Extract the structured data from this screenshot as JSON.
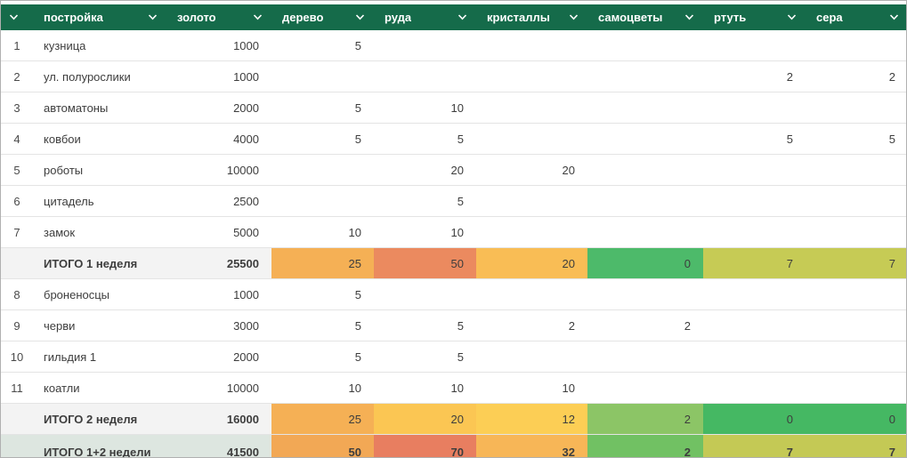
{
  "theme": {
    "header_bg": "#156b4a",
    "header_text": "#ffffff",
    "row_line": "#e4e4e4",
    "subtotal_bg": "#f3f3f3",
    "grand_bg": "#dde6e0",
    "text": "#3d3d3d"
  },
  "icons": {
    "header_chevron": "chevron-down-icon"
  },
  "table": {
    "columns": [
      {
        "key": "num",
        "label": ""
      },
      {
        "key": "building",
        "label": "постройка"
      },
      {
        "key": "gold",
        "label": "золото"
      },
      {
        "key": "wood",
        "label": "дерево"
      },
      {
        "key": "ore",
        "label": "руда"
      },
      {
        "key": "crystals",
        "label": "кристаллы"
      },
      {
        "key": "gems",
        "label": "самоцветы"
      },
      {
        "key": "mercury",
        "label": "ртуть"
      },
      {
        "key": "sulfur",
        "label": "сера"
      }
    ],
    "rows": [
      {
        "type": "data",
        "num": "1",
        "building": "кузница",
        "values": [
          "1000",
          "5",
          "",
          "",
          "",
          "",
          ""
        ]
      },
      {
        "type": "data",
        "num": "2",
        "building": "ул. полурослики",
        "values": [
          "1000",
          "",
          "",
          "",
          "",
          "2",
          "2"
        ]
      },
      {
        "type": "data",
        "num": "3",
        "building": "автоматоны",
        "values": [
          "2000",
          "5",
          "10",
          "",
          "",
          "",
          ""
        ]
      },
      {
        "type": "data",
        "num": "4",
        "building": "ковбои",
        "values": [
          "4000",
          "5",
          "5",
          "",
          "",
          "5",
          "5"
        ]
      },
      {
        "type": "data",
        "num": "5",
        "building": "роботы",
        "values": [
          "10000",
          "",
          "20",
          "20",
          "",
          "",
          ""
        ]
      },
      {
        "type": "data",
        "num": "6",
        "building": "цитадель",
        "values": [
          "2500",
          "",
          "5",
          "",
          "",
          "",
          ""
        ]
      },
      {
        "type": "data",
        "num": "7",
        "building": "замок",
        "values": [
          "5000",
          "10",
          "10",
          "",
          "",
          "",
          ""
        ]
      },
      {
        "type": "week-total",
        "num": "",
        "building": "ИТОГО 1 неделя",
        "values": [
          "25500",
          "25",
          "50",
          "20",
          "0",
          "7",
          "7"
        ],
        "colors": [
          "",
          "#f5b055",
          "#eb8a5f",
          "#f9bd55",
          "#4dba6a",
          "#c6cb55",
          "#c6cb55"
        ]
      },
      {
        "type": "data",
        "num": "8",
        "building": "броненосцы",
        "values": [
          "1000",
          "5",
          "",
          "",
          "",
          "",
          ""
        ]
      },
      {
        "type": "data",
        "num": "9",
        "building": "черви",
        "values": [
          "3000",
          "5",
          "5",
          "2",
          "2",
          "",
          ""
        ]
      },
      {
        "type": "data",
        "num": "10",
        "building": "гильдия 1",
        "values": [
          "2000",
          "5",
          "5",
          "",
          "",
          "",
          ""
        ]
      },
      {
        "type": "data",
        "num": "11",
        "building": "коатли",
        "values": [
          "10000",
          "10",
          "10",
          "10",
          "",
          "",
          ""
        ]
      },
      {
        "type": "week-total",
        "num": "",
        "building": "ИТОГО 2 неделя",
        "values": [
          "16000",
          "25",
          "20",
          "12",
          "2",
          "0",
          "0"
        ],
        "colors": [
          "",
          "#f5b055",
          "#fbc653",
          "#fcce55",
          "#8cc566",
          "#45b863",
          "#45b863"
        ]
      },
      {
        "type": "grand-total",
        "num": "",
        "building": "ИТОГО 1+2 недели",
        "values": [
          "41500",
          "50",
          "70",
          "32",
          "2",
          "7",
          "7"
        ],
        "colors": [
          "",
          "#f2a855",
          "#e87e60",
          "#f7b657",
          "#71c163",
          "#c4c955",
          "#c4c955"
        ]
      }
    ]
  }
}
